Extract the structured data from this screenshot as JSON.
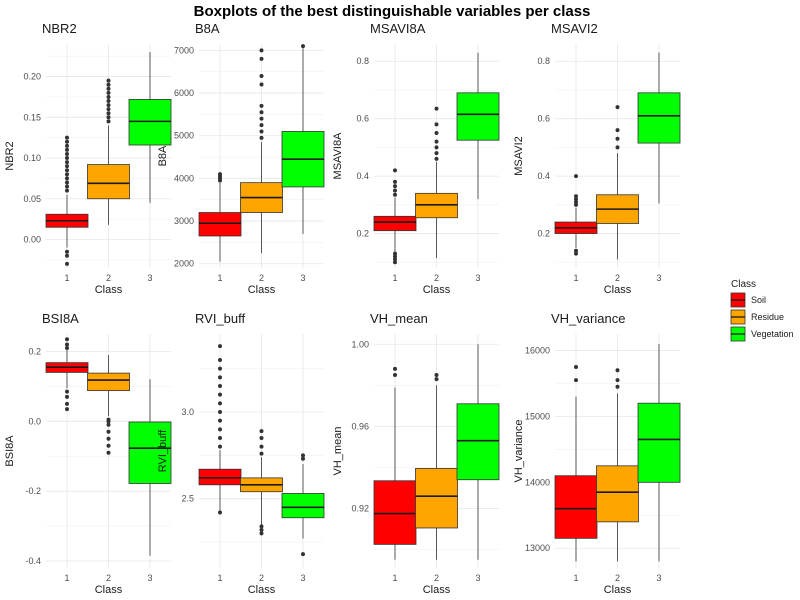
{
  "title": "Boxplots of the best distinguishable variables per class",
  "legend": {
    "title": "Class",
    "position": "right",
    "items": [
      {
        "label": "Soil",
        "color": "#ff0000"
      },
      {
        "label": "Residue",
        "color": "#ffa500"
      },
      {
        "label": "Vegetation",
        "color": "#00ff00"
      }
    ]
  },
  "chart_data": [
    {
      "type": "boxplot",
      "title": "NBR2",
      "xlabel": "Class",
      "ylabel": "NBR2",
      "categories": [
        "1",
        "2",
        "3"
      ],
      "ylim": [
        -0.035,
        0.24
      ],
      "yticks": [
        0.0,
        0.05,
        0.1,
        0.15,
        0.2
      ],
      "ytick_labels": [
        "0.00",
        "0.05",
        "0.10",
        "0.15",
        "0.20"
      ],
      "grid": true,
      "boxes": [
        {
          "class": "1",
          "whisker_low": -0.01,
          "q1": 0.015,
          "median": 0.023,
          "q3": 0.031,
          "whisker_high": 0.055,
          "outliers": [
            -0.03,
            -0.02,
            -0.015,
            0.06,
            0.065,
            0.07,
            0.075,
            0.08,
            0.085,
            0.09,
            0.095,
            0.1,
            0.105,
            0.11,
            0.115,
            0.12,
            0.125
          ]
        },
        {
          "class": "2",
          "whisker_low": 0.018,
          "q1": 0.05,
          "median": 0.069,
          "q3": 0.092,
          "whisker_high": 0.14,
          "outliers": [
            0.145,
            0.15,
            0.155,
            0.16,
            0.165,
            0.17,
            0.175,
            0.18,
            0.185,
            0.19,
            0.195
          ]
        },
        {
          "class": "3",
          "whisker_low": 0.045,
          "q1": 0.116,
          "median": 0.145,
          "q3": 0.172,
          "whisker_high": 0.23,
          "outliers": []
        }
      ]
    },
    {
      "type": "boxplot",
      "title": "B8A",
      "xlabel": "Class",
      "ylabel": "B8A",
      "categories": [
        "1",
        "2",
        "3"
      ],
      "ylim": [
        1900,
        7150
      ],
      "yticks": [
        2000,
        3000,
        4000,
        5000,
        6000,
        7000
      ],
      "ytick_labels": [
        "2000",
        "3000",
        "4000",
        "5000",
        "6000",
        "7000"
      ],
      "grid": true,
      "boxes": [
        {
          "class": "1",
          "whisker_low": 2050,
          "q1": 2650,
          "median": 2950,
          "q3": 3200,
          "whisker_high": 3900,
          "outliers": [
            3950,
            4000,
            4050,
            4100
          ]
        },
        {
          "class": "2",
          "whisker_low": 2250,
          "q1": 3200,
          "median": 3550,
          "q3": 3900,
          "whisker_high": 4850,
          "outliers": [
            4950,
            5100,
            5250,
            5400,
            5550,
            5700,
            6200,
            6400,
            6800,
            7000
          ]
        },
        {
          "class": "3",
          "whisker_low": 2700,
          "q1": 3800,
          "median": 4450,
          "q3": 5100,
          "whisker_high": 7050,
          "outliers": [
            7100
          ]
        }
      ]
    },
    {
      "type": "boxplot",
      "title": "MSAVI8A",
      "xlabel": "Class",
      "ylabel": "MSAVI8A",
      "categories": [
        "1",
        "2",
        "3"
      ],
      "ylim": [
        0.08,
        0.86
      ],
      "yticks": [
        0.2,
        0.4,
        0.6,
        0.8
      ],
      "ytick_labels": [
        "0.2",
        "0.4",
        "0.6",
        "0.8"
      ],
      "grid": true,
      "boxes": [
        {
          "class": "1",
          "whisker_low": 0.135,
          "q1": 0.21,
          "median": 0.24,
          "q3": 0.26,
          "whisker_high": 0.325,
          "outliers": [
            0.1,
            0.11,
            0.12,
            0.13,
            0.335,
            0.35,
            0.365,
            0.38,
            0.42
          ]
        },
        {
          "class": "2",
          "whisker_low": 0.115,
          "q1": 0.255,
          "median": 0.3,
          "q3": 0.34,
          "whisker_high": 0.45,
          "outliers": [
            0.46,
            0.48,
            0.5,
            0.52,
            0.55,
            0.58,
            0.635
          ]
        },
        {
          "class": "3",
          "whisker_low": 0.32,
          "q1": 0.525,
          "median": 0.615,
          "q3": 0.69,
          "whisker_high": 0.83,
          "outliers": []
        }
      ]
    },
    {
      "type": "boxplot",
      "title": "MSAVI2",
      "xlabel": "Class",
      "ylabel": "MSAVI2",
      "categories": [
        "1",
        "2",
        "3"
      ],
      "ylim": [
        0.08,
        0.86
      ],
      "yticks": [
        0.2,
        0.4,
        0.6,
        0.8
      ],
      "ytick_labels": [
        "0.2",
        "0.4",
        "0.6",
        "0.8"
      ],
      "grid": true,
      "boxes": [
        {
          "class": "1",
          "whisker_low": 0.15,
          "q1": 0.2,
          "median": 0.22,
          "q3": 0.24,
          "whisker_high": 0.29,
          "outliers": [
            0.13,
            0.14,
            0.3,
            0.31,
            0.32,
            0.33,
            0.4
          ]
        },
        {
          "class": "2",
          "whisker_low": 0.11,
          "q1": 0.235,
          "median": 0.285,
          "q3": 0.335,
          "whisker_high": 0.48,
          "outliers": [
            0.5,
            0.53,
            0.56,
            0.64
          ]
        },
        {
          "class": "3",
          "whisker_low": 0.305,
          "q1": 0.515,
          "median": 0.61,
          "q3": 0.69,
          "whisker_high": 0.83,
          "outliers": []
        }
      ]
    },
    {
      "type": "boxplot",
      "title": "BSI8A",
      "xlabel": "Class",
      "ylabel": "BSI8A",
      "categories": [
        "1",
        "2",
        "3"
      ],
      "ylim": [
        -0.42,
        0.25
      ],
      "yticks": [
        -0.4,
        -0.2,
        0.0,
        0.2
      ],
      "ytick_labels": [
        "-0.4",
        "-0.2",
        "0.0",
        "0.2"
      ],
      "grid": true,
      "boxes": [
        {
          "class": "1",
          "whisker_low": 0.095,
          "q1": 0.14,
          "median": 0.155,
          "q3": 0.168,
          "whisker_high": 0.205,
          "outliers": [
            0.035,
            0.05,
            0.07,
            0.085,
            0.21,
            0.22,
            0.235
          ]
        },
        {
          "class": "2",
          "whisker_low": 0.015,
          "q1": 0.088,
          "median": 0.118,
          "q3": 0.138,
          "whisker_high": 0.19,
          "outliers": [
            -0.09,
            -0.07,
            -0.05,
            -0.03,
            -0.01,
            0.0,
            0.005
          ]
        },
        {
          "class": "3",
          "whisker_low": -0.385,
          "q1": -0.178,
          "median": -0.077,
          "q3": -0.002,
          "whisker_high": 0.12,
          "outliers": []
        }
      ]
    },
    {
      "type": "boxplot",
      "title": "RVI_buff",
      "xlabel": "Class",
      "ylabel": "RVI_buff",
      "categories": [
        "1",
        "2",
        "3"
      ],
      "ylim": [
        2.1,
        3.45
      ],
      "yticks": [
        2.5,
        3.0
      ],
      "ytick_labels": [
        "2.5",
        "3.0"
      ],
      "grid": true,
      "boxes": [
        {
          "class": "1",
          "whisker_low": 2.43,
          "q1": 2.58,
          "median": 2.62,
          "q3": 2.67,
          "whisker_high": 2.78,
          "outliers": [
            2.42,
            2.8,
            2.85,
            2.9,
            2.95,
            3.0,
            3.05,
            3.1,
            3.15,
            3.2,
            3.25,
            3.3,
            3.38
          ]
        },
        {
          "class": "2",
          "whisker_low": 2.35,
          "q1": 2.54,
          "median": 2.58,
          "q3": 2.62,
          "whisker_high": 2.74,
          "outliers": [
            2.3,
            2.32,
            2.34,
            2.76,
            2.8,
            2.85,
            2.89
          ]
        },
        {
          "class": "3",
          "whisker_low": 2.27,
          "q1": 2.39,
          "median": 2.45,
          "q3": 2.53,
          "whisker_high": 2.7,
          "outliers": [
            2.18,
            2.73,
            2.75
          ]
        }
      ]
    },
    {
      "type": "boxplot",
      "title": "VH_mean",
      "xlabel": "Class",
      "ylabel": "VH_mean",
      "categories": [
        "1",
        "2",
        "3"
      ],
      "ylim": [
        0.891,
        1.005
      ],
      "yticks": [
        0.92,
        0.96,
        1.0
      ],
      "ytick_labels": [
        "0.92",
        "0.96",
        "1.00"
      ],
      "grid": true,
      "boxes": [
        {
          "class": "1",
          "whisker_low": 0.895,
          "q1": 0.9025,
          "median": 0.9175,
          "q3": 0.9335,
          "whisker_high": 0.979,
          "outliers": [
            0.985,
            0.988
          ]
        },
        {
          "class": "2",
          "whisker_low": 0.895,
          "q1": 0.9105,
          "median": 0.926,
          "q3": 0.9395,
          "whisker_high": 0.98,
          "outliers": [
            0.983,
            0.985
          ]
        },
        {
          "class": "3",
          "whisker_low": 0.895,
          "q1": 0.934,
          "median": 0.953,
          "q3": 0.971,
          "whisker_high": 1.0,
          "outliers": []
        }
      ]
    },
    {
      "type": "boxplot",
      "title": "VH_variance",
      "xlabel": "Class",
      "ylabel": "VH_variance",
      "categories": [
        "1",
        "2",
        "3"
      ],
      "ylim": [
        12700,
        16250
      ],
      "yticks": [
        13000,
        14000,
        15000,
        16000
      ],
      "ytick_labels": [
        "13000",
        "14000",
        "15000",
        "16000"
      ],
      "grid": true,
      "boxes": [
        {
          "class": "1",
          "whisker_low": 12800,
          "q1": 13150,
          "median": 13600,
          "q3": 14100,
          "whisker_high": 15300,
          "outliers": [
            15550,
            15750
          ]
        },
        {
          "class": "2",
          "whisker_low": 12800,
          "q1": 13400,
          "median": 13850,
          "q3": 14250,
          "whisker_high": 15350,
          "outliers": [
            15450,
            15550,
            15700
          ]
        },
        {
          "class": "3",
          "whisker_low": 12800,
          "q1": 14000,
          "median": 14650,
          "q3": 15200,
          "whisker_high": 16100,
          "outliers": []
        }
      ]
    }
  ]
}
